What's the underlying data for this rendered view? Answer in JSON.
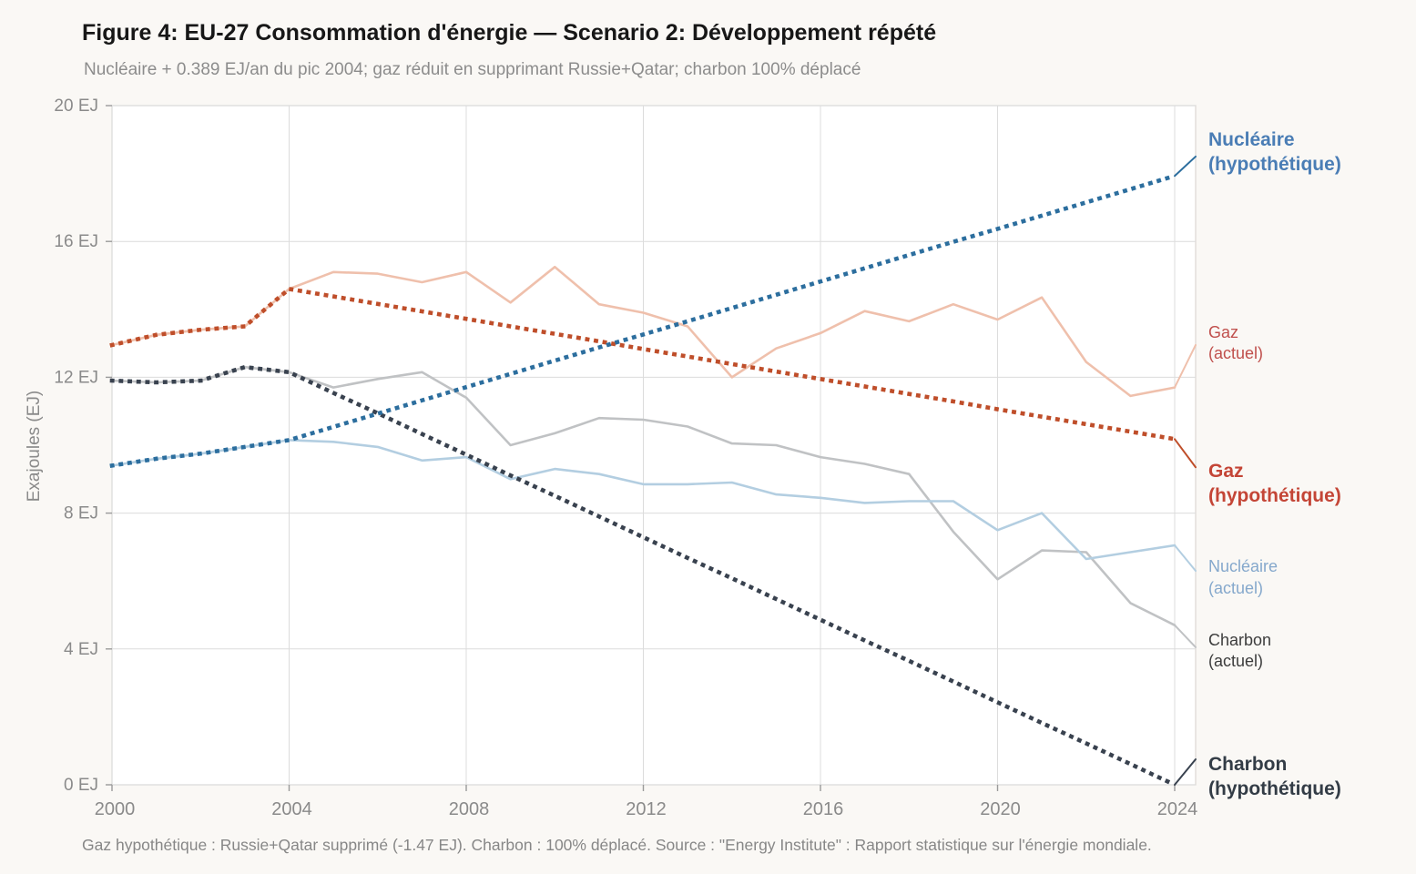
{
  "title": "Figure 4: EU-27 Consommation d'énergie — Scenario 2: Développement répété",
  "subtitle": "Nucléaire + 0.389 EJ/an du pic 2004; gaz réduit en supprimant Russie+Qatar; charbon 100% déplacé",
  "footnote": "Gaz hypothétique : Russie+Qatar supprimé (-1.47 EJ). Charbon : 100% déplacé. Source : \"Energy Institute\" : Rapport statistique sur l'énergie mondiale.",
  "y_axis_label": "Exajoules (EJ)",
  "colors": {
    "page_background": "#faf8f5",
    "plot_background": "#ffffff",
    "grid": "#dcdcdc",
    "border": "#dedad6",
    "tick": "#9a9a9a",
    "tick_label": "#8a8a8a",
    "title_text": "#171717",
    "subtitle_text": "#8c8c8c",
    "footnote_text": "#878787"
  },
  "chart_data": {
    "type": "line",
    "x": [
      2000,
      2001,
      2002,
      2003,
      2004,
      2005,
      2006,
      2007,
      2008,
      2009,
      2010,
      2011,
      2012,
      2013,
      2014,
      2015,
      2016,
      2017,
      2018,
      2019,
      2020,
      2021,
      2022,
      2023,
      2024
    ],
    "x_ticks": [
      2000,
      2004,
      2008,
      2012,
      2016,
      2020,
      2024
    ],
    "y_ticks": [
      0,
      4,
      8,
      12,
      16,
      20
    ],
    "y_tick_suffix": " EJ",
    "ylim": [
      0,
      20
    ],
    "ylabel": "Exajoules (EJ)",
    "grid": true,
    "legend_position": "right-annotations",
    "series": [
      {
        "key": "charbon_actuel",
        "name": "Charbon (actuel)",
        "style": "solid",
        "color": "#c0c2c4",
        "label_lines": [
          "Charbon",
          "(actuel)"
        ],
        "label_color": "#3d3d3d",
        "label_bold": false,
        "label_size": 18,
        "label_ej": 3.95,
        "connector_ej": 4.05,
        "values": [
          11.9,
          11.85,
          11.9,
          12.3,
          12.15,
          11.7,
          11.95,
          12.15,
          11.4,
          10.0,
          10.35,
          10.8,
          10.75,
          10.55,
          10.05,
          10.0,
          9.65,
          9.45,
          9.15,
          7.45,
          6.05,
          6.9,
          6.85,
          5.35,
          4.7
        ]
      },
      {
        "key": "nucleaire_actuel",
        "name": "Nucléaire (actuel)",
        "style": "solid",
        "color": "#b3cee1",
        "label_lines": [
          "Nucléaire",
          "(actuel)"
        ],
        "label_color": "#85a8cc",
        "label_bold": false,
        "label_size": 18,
        "label_ej": 6.1,
        "connector_ej": 6.3,
        "values": [
          9.4,
          9.6,
          9.75,
          9.95,
          10.15,
          10.1,
          9.95,
          9.55,
          9.65,
          9.0,
          9.3,
          9.15,
          8.85,
          8.85,
          8.9,
          8.55,
          8.45,
          8.3,
          8.35,
          8.35,
          7.5,
          8.0,
          6.65,
          6.85,
          7.05
        ]
      },
      {
        "key": "gaz_actuel",
        "name": "Gaz (actuel)",
        "style": "solid",
        "color": "#efc0ac",
        "label_lines": [
          "Gaz",
          "(actuel)"
        ],
        "label_color": "#c0504d",
        "label_bold": false,
        "label_size": 18,
        "label_ej": 13.0,
        "connector_ej": 12.95,
        "values": [
          12.95,
          13.25,
          13.4,
          13.5,
          14.6,
          15.1,
          15.05,
          14.8,
          15.1,
          14.2,
          15.25,
          14.15,
          13.9,
          13.5,
          12.0,
          12.85,
          13.3,
          13.95,
          13.65,
          14.15,
          13.7,
          14.35,
          12.45,
          11.45,
          11.7
        ]
      },
      {
        "key": "charbon_hypothetique",
        "name": "Charbon (hypothétique)",
        "style": "dotted",
        "color": "#39424f",
        "label_lines": [
          "Charbon",
          "(hypothétique)"
        ],
        "label_color": "#333c46",
        "label_bold": true,
        "label_size": 21,
        "label_ej": 0.22,
        "connector_ej": 0.75,
        "values": [
          11.9,
          11.85,
          11.9,
          12.3,
          12.15,
          11.54,
          10.94,
          10.33,
          9.72,
          9.11,
          8.51,
          7.9,
          7.29,
          6.68,
          6.08,
          5.47,
          4.86,
          4.25,
          3.65,
          3.04,
          2.43,
          1.82,
          1.22,
          0.61,
          0.0
        ]
      },
      {
        "key": "gaz_hypothetique",
        "name": "Gaz (hypothétique)",
        "style": "dotted",
        "color": "#bf4e2a",
        "label_lines": [
          "Gaz",
          "(hypothétique)"
        ],
        "label_color": "#c44536",
        "label_bold": true,
        "label_size": 21,
        "label_ej": 8.85,
        "connector_ej": 9.35,
        "values": [
          12.95,
          13.25,
          13.4,
          13.5,
          14.6,
          14.38,
          14.16,
          13.94,
          13.72,
          13.5,
          13.28,
          13.06,
          12.83,
          12.61,
          12.39,
          12.17,
          11.95,
          11.73,
          11.51,
          11.29,
          11.06,
          10.84,
          10.62,
          10.4,
          10.18
        ]
      },
      {
        "key": "nucleaire_hypothetique",
        "name": "Nucléaire (hypothétique)",
        "style": "dotted",
        "color": "#2c6e9e",
        "label_lines": [
          "Nucléaire",
          "(hypothétique)"
        ],
        "label_color": "#4a7db5",
        "label_bold": true,
        "label_size": 21,
        "label_ej": 18.6,
        "connector_ej": 18.5,
        "values": [
          9.4,
          9.6,
          9.75,
          9.95,
          10.15,
          10.54,
          10.93,
          11.32,
          11.71,
          12.1,
          12.49,
          12.88,
          13.26,
          13.65,
          14.04,
          14.43,
          14.82,
          15.21,
          15.6,
          15.99,
          16.37,
          16.76,
          17.15,
          17.54,
          17.93
        ]
      }
    ]
  }
}
